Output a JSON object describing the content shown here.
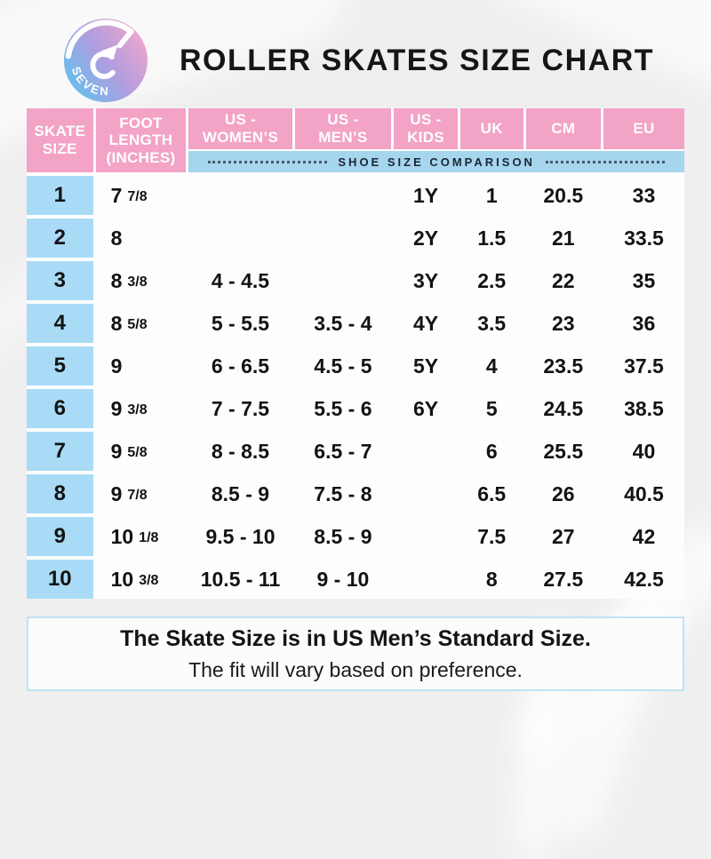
{
  "brand": {
    "name": "SEVEN"
  },
  "title": "ROLLER SKATES SIZE CHART",
  "table": {
    "columns": [
      {
        "label": "SKATE\nSIZE"
      },
      {
        "label": "FOOT\nLENGTH\n(INCHES)"
      },
      {
        "label": "US -\nWOMEN’S"
      },
      {
        "label": "US -\nMEN’S"
      },
      {
        "label": "US -\nKIDS"
      },
      {
        "label": "UK"
      },
      {
        "label": "CM"
      },
      {
        "label": "EU"
      }
    ],
    "band_label": "SHOE SIZE COMPARISON",
    "rows": [
      {
        "skate": "1",
        "foot_whole": "7",
        "foot_frac": "7/8",
        "womens": "",
        "mens": "",
        "kids": "1Y",
        "uk": "1",
        "cm": "20.5",
        "eu": "33"
      },
      {
        "skate": "2",
        "foot_whole": "8",
        "foot_frac": "",
        "womens": "",
        "mens": "",
        "kids": "2Y",
        "uk": "1.5",
        "cm": "21",
        "eu": "33.5"
      },
      {
        "skate": "3",
        "foot_whole": "8",
        "foot_frac": "3/8",
        "womens": "4 - 4.5",
        "mens": "",
        "kids": "3Y",
        "uk": "2.5",
        "cm": "22",
        "eu": "35"
      },
      {
        "skate": "4",
        "foot_whole": "8",
        "foot_frac": "5/8",
        "womens": "5 - 5.5",
        "mens": "3.5 - 4",
        "kids": "4Y",
        "uk": "3.5",
        "cm": "23",
        "eu": "36"
      },
      {
        "skate": "5",
        "foot_whole": "9",
        "foot_frac": "",
        "womens": "6 - 6.5",
        "mens": "4.5 - 5",
        "kids": "5Y",
        "uk": "4",
        "cm": "23.5",
        "eu": "37.5"
      },
      {
        "skate": "6",
        "foot_whole": "9",
        "foot_frac": "3/8",
        "womens": "7 - 7.5",
        "mens": "5.5 - 6",
        "kids": "6Y",
        "uk": "5",
        "cm": "24.5",
        "eu": "38.5"
      },
      {
        "skate": "7",
        "foot_whole": "9",
        "foot_frac": "5/8",
        "womens": "8 - 8.5",
        "mens": "6.5 - 7",
        "kids": "",
        "uk": "6",
        "cm": "25.5",
        "eu": "40"
      },
      {
        "skate": "8",
        "foot_whole": "9",
        "foot_frac": "7/8",
        "womens": "8.5 - 9",
        "mens": "7.5 - 8",
        "kids": "",
        "uk": "6.5",
        "cm": "26",
        "eu": "40.5"
      },
      {
        "skate": "9",
        "foot_whole": "10",
        "foot_frac": "1/8",
        "womens": "9.5 - 10",
        "mens": "8.5 - 9",
        "kids": "",
        "uk": "7.5",
        "cm": "27",
        "eu": "42"
      },
      {
        "skate": "10",
        "foot_whole": "10",
        "foot_frac": "3/8",
        "womens": "10.5 - 11",
        "mens": "9 - 10",
        "kids": "",
        "uk": "8",
        "cm": "27.5",
        "eu": "42.5"
      }
    ]
  },
  "footer": {
    "line1": "The Skate Size is in US Men’s Standard Size.",
    "line2": "The fit will vary based on preference."
  },
  "colors": {
    "header_pink": "#f3a3c5",
    "band_blue": "#a6d5ee",
    "skate_column_blue": "#a9dbf6",
    "row_light_blue": "#e3f1fb",
    "row_light_pink": "#fbdcea",
    "logo_blue": "#5ec3ee",
    "logo_pink": "#f5a8ca"
  }
}
